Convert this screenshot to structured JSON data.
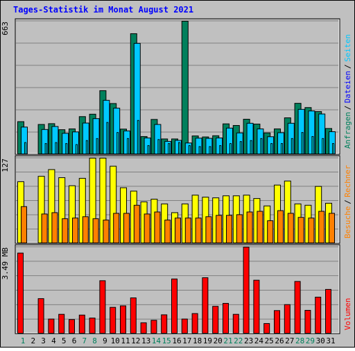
{
  "title": "Tages-Statistik im Monat August 2021",
  "colors": {
    "background": "#c0c0c0",
    "title": "#0000ff",
    "hits": "#00805c",
    "files": "#00c8ff",
    "pages": "#00ffff",
    "visits": "#ff8000",
    "sites": "#ffff00",
    "volume": "#ff0000",
    "weekend_day": "#00805c",
    "weekday": "#000000"
  },
  "chart_data": [
    {
      "type": "bar",
      "panel": "top",
      "max_label": "663",
      "ymax": 663,
      "legend_words": [
        {
          "text": "Anfragen",
          "color": "#00805c"
        },
        {
          "text": "Dateien",
          "color": "#0000ff"
        },
        {
          "text": "Seiten",
          "color": "#00c8ff"
        }
      ],
      "x": [
        1,
        2,
        3,
        4,
        5,
        6,
        7,
        8,
        9,
        10,
        11,
        12,
        13,
        14,
        15,
        16,
        17,
        18,
        19,
        20,
        21,
        22,
        23,
        24,
        25,
        26,
        27,
        28,
        29,
        30,
        31
      ],
      "series": [
        {
          "name": "Anfragen",
          "values": [
            164,
            0,
            150,
            154,
            124,
            128,
            189,
            201,
            318,
            254,
            127,
            601,
            90,
            175,
            78,
            78,
            663,
            93,
            88,
            94,
            153,
            145,
            176,
            152,
            108,
            128,
            183,
            255,
            234,
            214,
            130
          ]
        },
        {
          "name": "Dateien",
          "values": [
            137,
            0,
            125,
            140,
            106,
            113,
            157,
            179,
            270,
            231,
            118,
            553,
            83,
            150,
            66,
            71,
            58,
            82,
            81,
            83,
            132,
            108,
            156,
            128,
            89,
            109,
            156,
            225,
            217,
            202,
            114
          ]
        },
        {
          "name": "Seiten",
          "values": [
            60,
            0,
            55,
            60,
            55,
            50,
            70,
            80,
            160,
            110,
            80,
            170,
            45,
            75,
            55,
            60,
            45,
            40,
            40,
            45,
            55,
            65,
            70,
            80,
            55,
            55,
            80,
            110,
            90,
            80,
            55
          ]
        }
      ]
    },
    {
      "type": "bar",
      "panel": "middle",
      "max_label": "127",
      "ymax": 127,
      "legend_words": [
        {
          "text": "Besuche",
          "color": "#ff8000"
        },
        {
          "text": "Rechner",
          "color": "#ff8000"
        }
      ],
      "x": [
        1,
        2,
        3,
        4,
        5,
        6,
        7,
        8,
        9,
        10,
        11,
        12,
        13,
        14,
        15,
        16,
        17,
        18,
        19,
        20,
        21,
        22,
        23,
        24,
        25,
        26,
        27,
        28,
        29,
        30,
        31
      ],
      "series": [
        {
          "name": "Besuche",
          "values": [
            92,
            0,
            100,
            110,
            98,
            86,
            97,
            127,
            127,
            115,
            83,
            78,
            62,
            66,
            59,
            46,
            59,
            72,
            69,
            68,
            71,
            71,
            72,
            67,
            56,
            87,
            93,
            59,
            57,
            85,
            60
          ]
        },
        {
          "name": "Rechner",
          "values": [
            55,
            0,
            44,
            46,
            37,
            38,
            40,
            37,
            35,
            45,
            45,
            57,
            44,
            47,
            35,
            38,
            38,
            38,
            40,
            42,
            42,
            43,
            47,
            48,
            34,
            49,
            45,
            39,
            38,
            48,
            45
          ]
        }
      ]
    },
    {
      "type": "bar",
      "panel": "bottom",
      "max_label": "3.49 MB",
      "ymax": 3.49,
      "legend_words": [
        {
          "text": "Volumen",
          "color": "#ff0000"
        }
      ],
      "x": [
        1,
        2,
        3,
        4,
        5,
        6,
        7,
        8,
        9,
        10,
        11,
        12,
        13,
        14,
        15,
        16,
        17,
        18,
        19,
        20,
        21,
        22,
        23,
        24,
        25,
        26,
        27,
        28,
        29,
        30,
        31
      ],
      "series": [
        {
          "name": "Volumen",
          "values": [
            3.25,
            0,
            1.42,
            0.6,
            0.79,
            0.58,
            0.76,
            0.64,
            2.14,
            1.07,
            1.13,
            1.45,
            0.45,
            0.55,
            0.77,
            2.21,
            0.6,
            0.82,
            2.26,
            1.11,
            1.23,
            0.79,
            3.49,
            2.16,
            0.42,
            0.94,
            1.18,
            2.11,
            0.95,
            1.48,
            1.79
          ]
        }
      ]
    }
  ],
  "x_labels": [
    "1",
    "2",
    "3",
    "4",
    "5",
    "6",
    "7",
    "8",
    "9",
    "10",
    "11",
    "12",
    "13",
    "14",
    "15",
    "16",
    "17",
    "18",
    "19",
    "20",
    "21",
    "22",
    "23",
    "24",
    "25",
    "26",
    "27",
    "28",
    "29",
    "30",
    "31"
  ],
  "weekend_days": [
    1,
    7,
    8,
    14,
    15,
    21,
    22,
    28,
    29
  ]
}
